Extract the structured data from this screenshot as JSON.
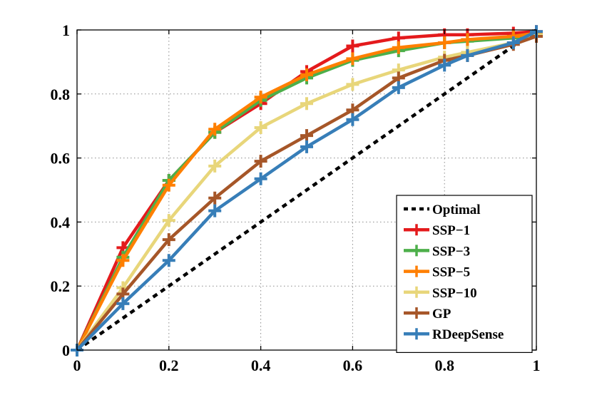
{
  "chart_data": {
    "type": "line",
    "title": "",
    "xlabel": "",
    "ylabel": "",
    "xlim": [
      0,
      1
    ],
    "ylim": [
      0,
      1
    ],
    "grid": true,
    "legend_position": "bottom-right",
    "x_ticks": [
      0,
      0.2,
      0.4,
      0.6,
      0.8,
      1
    ],
    "y_ticks": [
      0,
      0.2,
      0.4,
      0.6,
      0.8,
      1
    ],
    "x_tick_labels": [
      "0",
      "0.2",
      "0.4",
      "0.6",
      "0.8",
      "1"
    ],
    "y_tick_labels": [
      "0",
      "0.2",
      "0.4",
      "0.6",
      "0.8",
      "1"
    ],
    "series": [
      {
        "name": "Optimal",
        "color": "#000000",
        "dashed": true,
        "markers": false,
        "x": [
          0,
          1
        ],
        "y": [
          0,
          1
        ]
      },
      {
        "name": "SSP−1",
        "color": "#e41a1c",
        "dashed": false,
        "markers": true,
        "x": [
          0,
          0.1,
          0.2,
          0.3,
          0.4,
          0.5,
          0.6,
          0.7,
          0.8,
          0.85,
          0.95,
          1
        ],
        "y": [
          0,
          0.32,
          0.53,
          0.68,
          0.77,
          0.87,
          0.95,
          0.975,
          0.985,
          0.985,
          0.99,
          0.995
        ]
      },
      {
        "name": "SSP−3",
        "color": "#4daf4a",
        "dashed": false,
        "markers": true,
        "x": [
          0,
          0.1,
          0.2,
          0.3,
          0.4,
          0.5,
          0.6,
          0.7,
          0.8,
          0.85,
          0.95,
          1
        ],
        "y": [
          0,
          0.29,
          0.53,
          0.68,
          0.78,
          0.85,
          0.905,
          0.935,
          0.96,
          0.965,
          0.975,
          0.99
        ]
      },
      {
        "name": "SSP−5",
        "color": "#ff7f00",
        "dashed": false,
        "markers": true,
        "x": [
          0,
          0.1,
          0.2,
          0.3,
          0.4,
          0.5,
          0.6,
          0.7,
          0.8,
          0.85,
          0.95,
          1
        ],
        "y": [
          0,
          0.28,
          0.515,
          0.69,
          0.79,
          0.86,
          0.91,
          0.945,
          0.96,
          0.97,
          0.98,
          0.99
        ]
      },
      {
        "name": "SSP−10",
        "color": "#e8d67a",
        "dashed": false,
        "markers": true,
        "x": [
          0,
          0.1,
          0.2,
          0.3,
          0.4,
          0.5,
          0.6,
          0.7,
          0.8,
          0.85,
          0.95,
          1
        ],
        "y": [
          0,
          0.195,
          0.405,
          0.575,
          0.695,
          0.77,
          0.83,
          0.875,
          0.915,
          0.93,
          0.96,
          0.985
        ]
      },
      {
        "name": "GP",
        "color": "#a65628",
        "dashed": false,
        "markers": true,
        "x": [
          0,
          0.1,
          0.2,
          0.3,
          0.4,
          0.5,
          0.6,
          0.7,
          0.8,
          0.85,
          0.95,
          1
        ],
        "y": [
          0,
          0.175,
          0.345,
          0.475,
          0.59,
          0.67,
          0.75,
          0.85,
          0.905,
          0.92,
          0.955,
          0.98
        ]
      },
      {
        "name": "RDeepSense",
        "color": "#377eb8",
        "dashed": false,
        "markers": true,
        "x": [
          0,
          0.1,
          0.2,
          0.3,
          0.4,
          0.5,
          0.6,
          0.7,
          0.8,
          0.85,
          0.95,
          1
        ],
        "y": [
          0,
          0.145,
          0.28,
          0.435,
          0.535,
          0.635,
          0.72,
          0.82,
          0.89,
          0.92,
          0.96,
          0.995
        ]
      }
    ]
  }
}
